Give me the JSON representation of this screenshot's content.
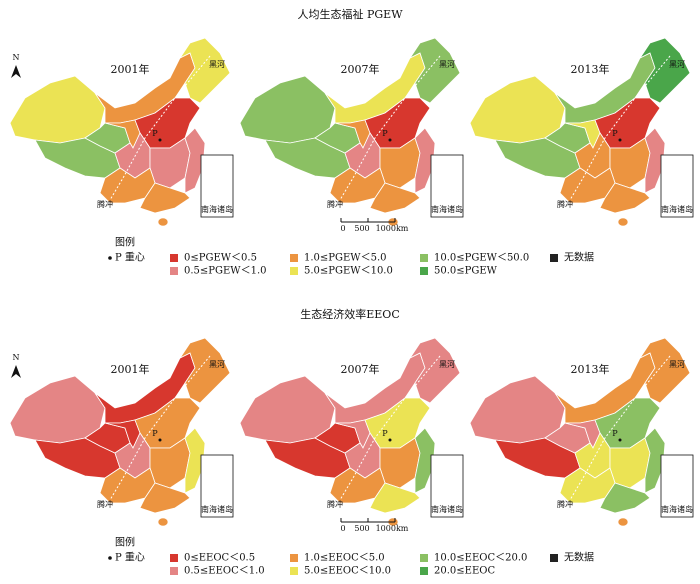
{
  "panels": [
    {
      "title": "人均生态福祉 PGEW",
      "years": [
        "2001年",
        "2007年",
        "2013年"
      ],
      "legend": {
        "title": "图例",
        "centroid": "P 重心",
        "items": [
          {
            "label": "0≤PGEW＜0.5",
            "color": "#d7372e"
          },
          {
            "label": "0.5≤PGEW＜1.0",
            "color": "#e48585"
          },
          {
            "label": "1.0≤PGEW＜5.0",
            "color": "#ec9440"
          },
          {
            "label": "5.0≤PGEW＜10.0",
            "color": "#ebe354"
          },
          {
            "label": "10.0≤PGEW＜50.0",
            "color": "#8bc063"
          },
          {
            "label": "50.0≤PGEW",
            "color": "#4aa64a"
          }
        ],
        "no_data": {
          "label": "无数据",
          "color": "#222222"
        }
      }
    },
    {
      "title": "生态经济效率EEOC",
      "years": [
        "2001年",
        "2007年",
        "2013年"
      ],
      "legend": {
        "title": "图例",
        "centroid": "P 重心",
        "items": [
          {
            "label": "0≤EEOC＜0.5",
            "color": "#d7372e"
          },
          {
            "label": "0.5≤EEOC＜1.0",
            "color": "#e48585"
          },
          {
            "label": "1.0≤EEOC＜5.0",
            "color": "#ec9440"
          },
          {
            "label": "5.0≤EEOC＜10.0",
            "color": "#ebe354"
          },
          {
            "label": "10.0≤EEOC＜20.0",
            "color": "#8bc063"
          },
          {
            "label": "20.0≤EEOC",
            "color": "#4aa64a"
          }
        ],
        "no_data": {
          "label": "无数据",
          "color": "#222222"
        }
      }
    }
  ],
  "map_labels": {
    "north": "N",
    "heihe": "黑河",
    "tengchong": "腾冲",
    "south_sea": "南海诸岛",
    "centroid": "P"
  },
  "scale_bar": [
    "0",
    "500",
    "1000km"
  ]
}
